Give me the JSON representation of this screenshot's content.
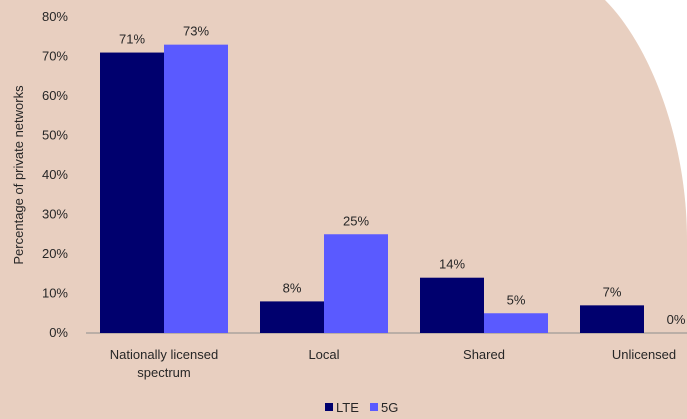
{
  "chart_data": {
    "type": "bar",
    "categories": [
      "Nationally licensed\nspectrum",
      "Local",
      "Shared",
      "Unlicensed"
    ],
    "series": [
      {
        "name": "LTE",
        "values": [
          71,
          8,
          14,
          7
        ],
        "labels": [
          "71%",
          "8%",
          "14%",
          "7%"
        ],
        "color": "#00006e"
      },
      {
        "name": "5G",
        "values": [
          73,
          25,
          5,
          0
        ],
        "labels": [
          "73%",
          "25%",
          "5%",
          "0%"
        ],
        "color": "#5a5aff"
      }
    ],
    "title": "",
    "xlabel": "",
    "ylabel": "Percentage of private networks",
    "ylim": [
      0,
      80
    ],
    "yticks": [
      "0%",
      "10%",
      "20%",
      "30%",
      "40%",
      "50%",
      "60%",
      "70%",
      "80%"
    ],
    "grid": false,
    "legend": "bottom",
    "background_color": "#e8cfc0"
  }
}
